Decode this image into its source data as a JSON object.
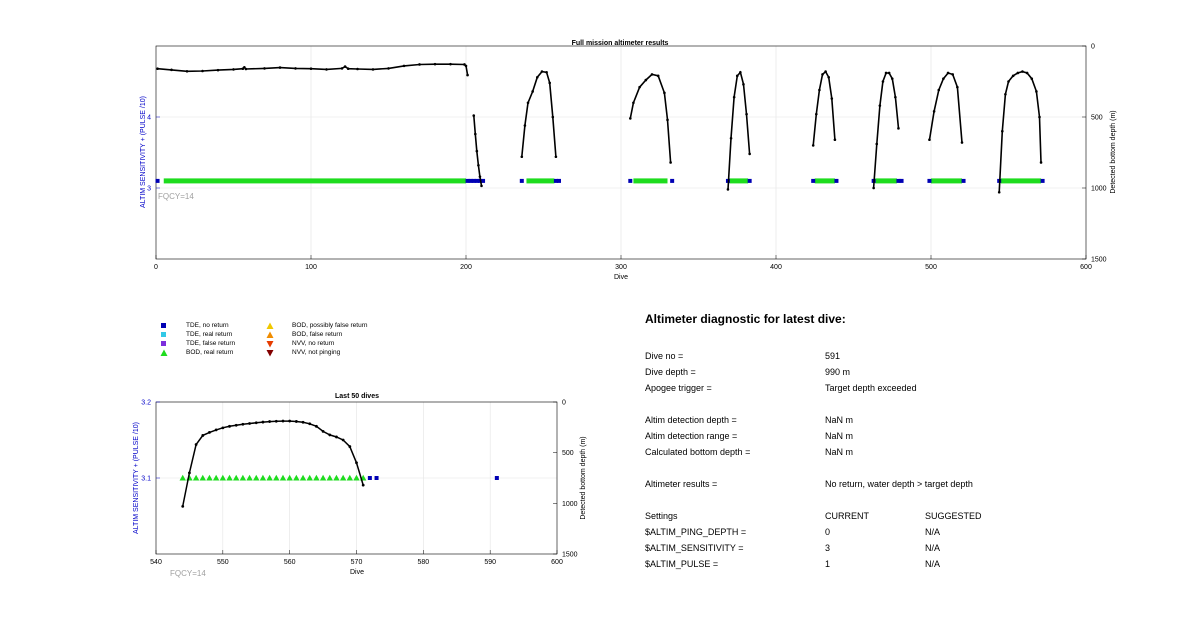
{
  "colors": {
    "tde_no_return": "#0000b4",
    "tde_real_return": "#32c8e6",
    "tde_false_return": "#7d2fdc",
    "bod_real_return": "#1edc1e",
    "bod_possibly_false": "#f0c800",
    "bod_false_return": "#f08c00",
    "nvv_no_return": "#e63c00",
    "nvv_not_pinging": "#820000",
    "profile": "#000000",
    "left_axis": "#0000c8",
    "annotation": "#a0a0a0"
  },
  "legend": {
    "items": [
      {
        "label": "TDE, no return",
        "marker": "square",
        "color_key": "tde_no_return"
      },
      {
        "label": "TDE, real return",
        "marker": "square",
        "color_key": "tde_real_return"
      },
      {
        "label": "TDE, false return",
        "marker": "square",
        "color_key": "tde_false_return"
      },
      {
        "label": "BOD, real return",
        "marker": "triangle-up",
        "color_key": "bod_real_return"
      },
      {
        "label": "BOD, possibly false return",
        "marker": "triangle-up",
        "color_key": "bod_possibly_false"
      },
      {
        "label": "BOD, false return",
        "marker": "triangle-up",
        "color_key": "bod_false_return"
      },
      {
        "label": "NVV, no return",
        "marker": "triangle-down",
        "color_key": "nvv_no_return"
      },
      {
        "label": "NVV, not pinging",
        "marker": "triangle-down",
        "color_key": "nvv_not_pinging"
      }
    ]
  },
  "diagnostic": {
    "title": "Altimeter diagnostic for latest dive:",
    "dive_no_label": "Dive no =",
    "dive_no_value": "591",
    "dive_depth_label": "Dive depth =",
    "dive_depth_value": "990 m",
    "apogee_label": "Apogee trigger =",
    "apogee_value": "Target depth exceeded",
    "det_depth_label": "Altim detection depth =",
    "det_depth_value": "NaN m",
    "det_range_label": "Altim detection range =",
    "det_range_value": "NaN m",
    "calc_bottom_label": "Calculated bottom depth =",
    "calc_bottom_value": "NaN m",
    "results_label": "Altimeter results =",
    "results_value": "No return, water depth > target depth",
    "settings_label": "Settings",
    "current_label": "CURRENT",
    "suggested_label": "SUGGESTED",
    "ping_depth_label": "$ALTIM_PING_DEPTH =",
    "ping_depth_current": "0",
    "ping_depth_suggested": "N/A",
    "sensitivity_label": "$ALTIM_SENSITIVITY =",
    "sensitivity_current": "3",
    "sensitivity_suggested": "N/A",
    "pulse_label": "$ALTIM_PULSE =",
    "pulse_current": "1",
    "pulse_suggested": "N/A"
  },
  "chart_data": [
    {
      "type": "scatter",
      "title": "Full mission altimeter results",
      "xlabel": "Dive",
      "ylabel": "ALTIM SENSITIVITY + (PULSE /10)",
      "y2label": "Detected bottom depth (m)",
      "xlim": [
        0,
        600
      ],
      "ylim": [
        2,
        5
      ],
      "y2lim": [
        1500,
        0
      ],
      "xticks": [
        0,
        100,
        200,
        300,
        400,
        500,
        600
      ],
      "yticks": [
        3,
        4
      ],
      "y2ticks": [
        0,
        500,
        1000,
        1500
      ],
      "grid": true,
      "annotation": "FQCY=14",
      "bod_real_return_ranges": [
        [
          5,
          200
        ],
        [
          239,
          257
        ],
        [
          308,
          330
        ],
        [
          370,
          382
        ],
        [
          425,
          438
        ],
        [
          464,
          478
        ],
        [
          500,
          520
        ],
        [
          545,
          571
        ]
      ],
      "tde_no_return_dives": [
        1,
        201,
        203,
        205,
        207,
        209,
        211,
        236,
        258,
        260,
        306,
        333,
        369,
        383,
        424,
        439,
        463,
        479,
        481,
        499,
        521,
        544,
        572
      ],
      "bottom_depth_profile": [
        {
          "x": [
            1,
            10,
            20,
            30,
            40,
            50,
            56,
            57,
            58,
            70,
            80,
            90,
            100,
            110,
            120,
            122,
            124,
            130,
            140,
            150,
            160,
            170,
            180,
            190,
            199,
            200,
            201
          ],
          "y": [
            160,
            168,
            178,
            176,
            170,
            165,
            160,
            150,
            162,
            158,
            152,
            158,
            160,
            165,
            158,
            145,
            160,
            162,
            165,
            158,
            140,
            130,
            128,
            128,
            130,
            140,
            205
          ]
        },
        {
          "x": [
            205,
            206,
            207,
            208,
            209,
            210
          ],
          "y": [
            490,
            620,
            740,
            840,
            920,
            985
          ]
        },
        {
          "x": [
            236,
            238,
            240,
            243,
            246,
            249,
            252,
            254,
            256,
            258
          ],
          "y": [
            780,
            560,
            400,
            320,
            220,
            180,
            185,
            260,
            500,
            780
          ]
        },
        {
          "x": [
            306,
            308,
            312,
            316,
            320,
            324,
            328,
            330,
            332
          ],
          "y": [
            510,
            400,
            290,
            240,
            200,
            210,
            330,
            520,
            820
          ]
        },
        {
          "x": [
            369,
            371,
            373,
            375,
            377,
            379,
            381,
            383
          ],
          "y": [
            1010,
            650,
            360,
            210,
            185,
            270,
            480,
            760
          ]
        },
        {
          "x": [
            424,
            426,
            428,
            430,
            432,
            434,
            436,
            438
          ],
          "y": [
            700,
            480,
            310,
            200,
            180,
            220,
            370,
            660
          ]
        },
        {
          "x": [
            463,
            465,
            467,
            469,
            471,
            473,
            475,
            477,
            479
          ],
          "y": [
            1000,
            690,
            420,
            250,
            190,
            190,
            230,
            360,
            580
          ]
        },
        {
          "x": [
            499,
            502,
            505,
            508,
            511,
            514,
            517,
            520
          ],
          "y": [
            660,
            460,
            310,
            230,
            190,
            200,
            290,
            680
          ]
        },
        {
          "x": [
            544,
            546,
            548,
            550,
            553,
            556,
            559,
            562,
            565,
            568,
            570,
            571
          ],
          "y": [
            1030,
            600,
            340,
            250,
            210,
            190,
            180,
            190,
            230,
            320,
            500,
            820
          ]
        }
      ]
    },
    {
      "type": "scatter",
      "title": "Last 50 dives",
      "xlabel": "Dive",
      "ylabel": "ALTIM SENSITIVITY + (PULSE /10)",
      "y2label": "Detected bottom depth (m)",
      "xlim": [
        540,
        600
      ],
      "ylim": [
        3.0,
        3.2
      ],
      "y2lim": [
        1500,
        0
      ],
      "xticks": [
        540,
        550,
        560,
        570,
        580,
        590,
        600
      ],
      "yticks": [
        3.1,
        3.2
      ],
      "y2ticks": [
        0,
        500,
        1000,
        1500
      ],
      "grid": true,
      "annotation": "FQCY=14",
      "bod_real_return_dives": [
        544,
        545,
        546,
        547,
        548,
        549,
        550,
        551,
        552,
        553,
        554,
        555,
        556,
        557,
        558,
        559,
        560,
        561,
        562,
        563,
        564,
        565,
        566,
        567,
        568,
        569,
        570,
        571
      ],
      "tde_no_return_dives": [
        572,
        573,
        591
      ],
      "bottom_depth_profile": [
        {
          "x": [
            544,
            545,
            546,
            547,
            548,
            549,
            550,
            551,
            552,
            553,
            554,
            555,
            556,
            557,
            558,
            559,
            560,
            561,
            562,
            563,
            564,
            565,
            566,
            567,
            568,
            569,
            570,
            571
          ],
          "y": [
            1030,
            700,
            420,
            330,
            300,
            275,
            255,
            240,
            230,
            220,
            212,
            205,
            198,
            193,
            190,
            188,
            188,
            192,
            200,
            215,
            240,
            290,
            325,
            345,
            375,
            440,
            600,
            820
          ]
        }
      ]
    }
  ]
}
